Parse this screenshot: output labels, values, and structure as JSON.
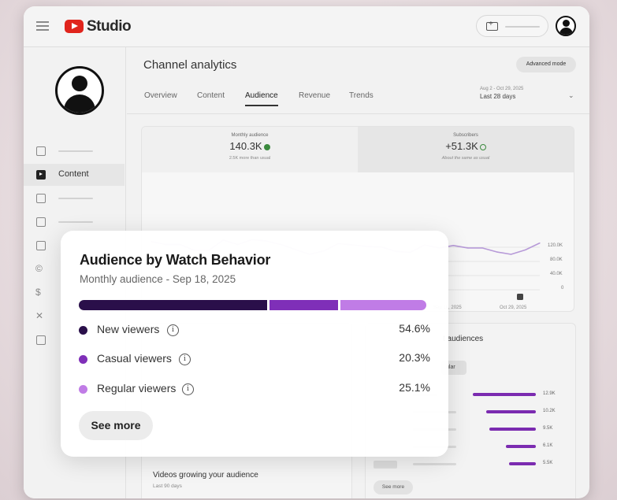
{
  "app": {
    "name": "Studio"
  },
  "sidebar": {
    "items": [
      {
        "label": "",
        "icon": "dashboard-icon"
      },
      {
        "label": "Content",
        "icon": "content-icon",
        "active": true
      },
      {
        "label": "",
        "icon": "analytics-icon"
      },
      {
        "label": "",
        "icon": "comments-icon"
      },
      {
        "label": "",
        "icon": "subtitles-icon"
      },
      {
        "label": "",
        "icon": "copyright-icon"
      },
      {
        "label": "",
        "icon": "earn-icon"
      },
      {
        "label": "",
        "icon": "customization-icon"
      },
      {
        "label": "",
        "icon": "audio-library-icon"
      }
    ]
  },
  "main": {
    "title": "Channel analytics",
    "advanced_mode": "Advanced mode",
    "tabs": [
      "Overview",
      "Content",
      "Audience",
      "Revenue",
      "Trends"
    ],
    "active_tab": "Audience",
    "date_range": {
      "dates": "Aug 2 - Oct 29, 2025",
      "label": "Last 28 days"
    }
  },
  "metrics": {
    "monthly_audience": {
      "label": "Monthly audience",
      "value": "140.3K",
      "note": "2.5K more than usual"
    },
    "subscribers": {
      "label": "Subscribers",
      "value": "+51.3K",
      "note": "About the same as usual"
    }
  },
  "chart_data": {
    "type": "line",
    "y_ticks": [
      "120.0K",
      "80.0K",
      "40.0K",
      "0"
    ],
    "x_ticks": [
      "Sep 16, 2025",
      "Oct 29, 2025"
    ],
    "ylim": [
      0,
      120000
    ],
    "series": [
      {
        "values": [
          134000,
          128000,
          128000,
          116000,
          116000,
          137000,
          128000,
          138000,
          135000,
          128000,
          118000,
          108000,
          115000,
          130000,
          127000,
          124000,
          123000,
          114000,
          112000,
          127000,
          121000,
          126000,
          121000,
          121000,
          113000,
          108000,
          117000,
          131000
        ]
      }
    ],
    "color": "#b79ad8"
  },
  "lower": {
    "left_title": "Videos growing your audience",
    "left_sub": "Last 90 days",
    "right_title": "t audiences",
    "right_pill": "ular",
    "right_values": [
      "12.9K",
      "10.2K",
      "9.5K",
      "6.1K",
      "5.5K"
    ],
    "right_bar_values": [
      12.9,
      10.2,
      9.5,
      6.1,
      5.5
    ],
    "see_more": "See more"
  },
  "popup": {
    "title": "Audience by Watch Behavior",
    "subtitle": "Monthly audience - Sep 18, 2025",
    "segments": [
      {
        "label": "New viewers",
        "pct": "54.6%",
        "value": 54.6,
        "color": "#2a0f4a"
      },
      {
        "label": "Casual viewers",
        "pct": "20.3%",
        "value": 20.3,
        "color": "#7f2fb8"
      },
      {
        "label": "Regular viewers",
        "pct": "25.1%",
        "value": 25.1,
        "color": "#c07ce6"
      }
    ],
    "see_more": "See more"
  }
}
